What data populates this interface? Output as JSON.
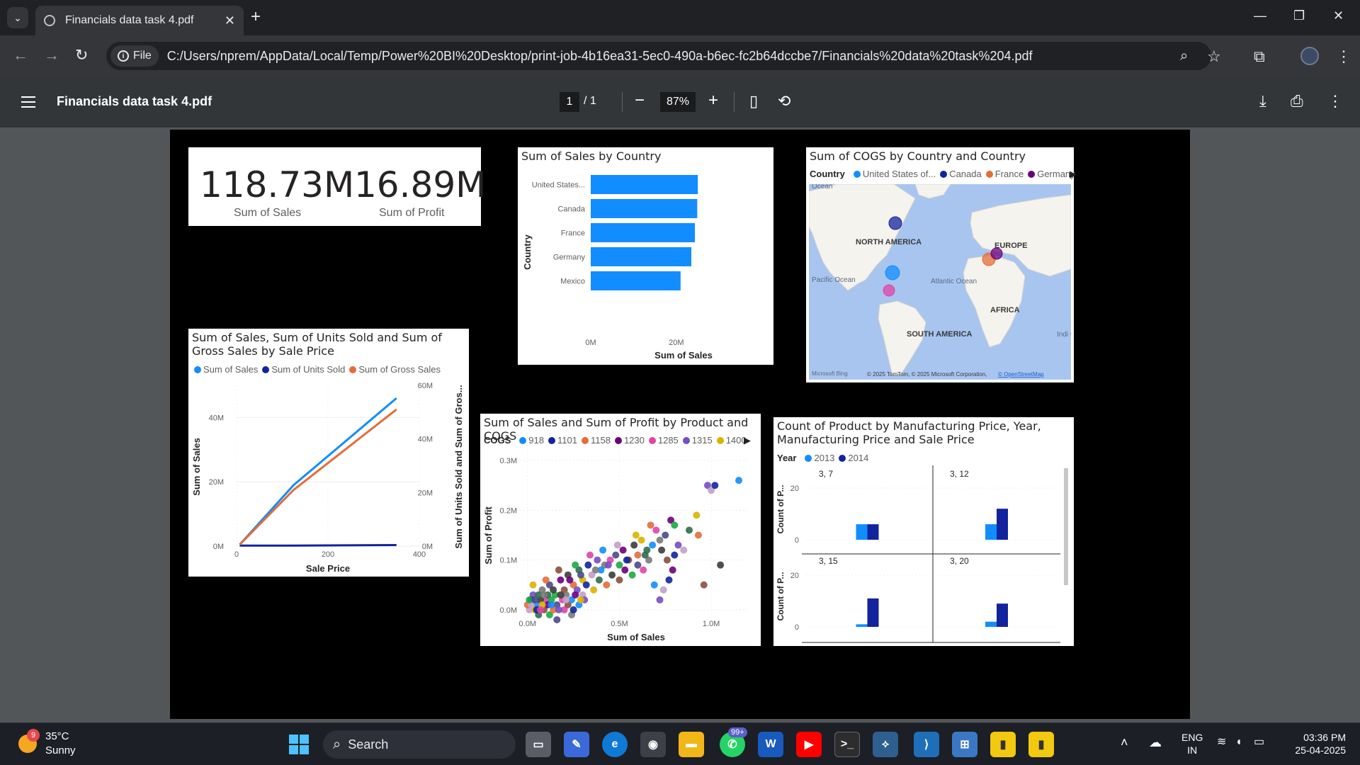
{
  "browser": {
    "tab_title": "Financials data task 4.pdf",
    "url_chip": "File",
    "url": "C:/Users/nprem/AppData/Local/Temp/Power%20BI%20Desktop/print-job-4b16ea31-5ec0-490a-b6ec-fc2b64dccbe7/Financials%20data%20task%204.pdf"
  },
  "pdf_toolbar": {
    "title": "Financials data task 4.pdf",
    "page_current": "1",
    "page_total": "/  1",
    "zoom": "87%"
  },
  "kpis": [
    {
      "value": "118.73M",
      "label": "Sum of  Sales"
    },
    {
      "value": "16.89M",
      "label": "Sum of Profit"
    }
  ],
  "chart_data": [
    {
      "id": "sales_by_country",
      "type": "bar",
      "title": "Sum of Sales by Country",
      "xlabel": "Sum of Sales",
      "ylabel": "Country",
      "categories": [
        "United States...",
        "Canada",
        "France",
        "Germany",
        "Mexico"
      ],
      "values": [
        25.03,
        24.89,
        24.35,
        23.51,
        21.0
      ],
      "xlim": [
        0,
        25.5
      ],
      "xticks": [
        "0M",
        "20M"
      ],
      "xtick_values": [
        0,
        20
      ],
      "color": "#118dff"
    },
    {
      "id": "cogs_map",
      "type": "map",
      "title": "Sum of COGS by Country and Country",
      "legend_title": "Country",
      "legend": [
        {
          "name": "United States of...",
          "color": "#118dff"
        },
        {
          "name": "Canada",
          "color": "#12239e"
        },
        {
          "name": "France",
          "color": "#e66c37"
        },
        {
          "name": "Germany",
          "color": "#6b007b"
        }
      ],
      "labels": [
        "NORTH AMERICA",
        "EUROPE",
        "SOUTH AMERICA",
        "AFRICA",
        "Pacific Ocean",
        "Atlantic Ocean",
        "Indi Oce",
        "Ocean"
      ],
      "attribution": "© 2025 TomTom, © 2025 Microsoft Corporation,",
      "attribution_link": "© OpenStreetMap",
      "bing": "Microsoft Bing"
    },
    {
      "id": "sales_units_gross",
      "type": "line",
      "title": "Sum of Sales, Sum of Units Sold and Sum of Gross Sales by Sale Price",
      "xlabel": "Sale Price",
      "ylabel": "Sum of Sales",
      "y2label": "Sum of Units Sold and Sum of Gros...",
      "x": [
        7,
        125,
        350
      ],
      "xticks": [
        0,
        200,
        400
      ],
      "ylim": [
        0,
        50
      ],
      "y2lim": [
        0,
        60
      ],
      "yticks": [
        "0M",
        "20M",
        "40M"
      ],
      "y2ticks": [
        "0M",
        "20M",
        "40M",
        "60M"
      ],
      "series": [
        {
          "name": "Sum of  Sales",
          "axis": "left",
          "values": [
            0.5,
            19,
            46
          ],
          "color": "#118dff"
        },
        {
          "name": "Sum of Units Sold",
          "axis": "right",
          "values": [
            0.2,
            0.2,
            0.4
          ],
          "color": "#12239e"
        },
        {
          "name": "Sum of Gross Sales",
          "axis": "right",
          "values": [
            0.6,
            21,
            51
          ],
          "color": "#e66c37"
        }
      ]
    },
    {
      "id": "sales_profit_scatter",
      "type": "scatter",
      "title": "Sum of Sales and Sum of Profit by Product and COGS",
      "legend_title": "COGS",
      "legend": [
        {
          "name": "918",
          "color": "#118dff"
        },
        {
          "name": "1101",
          "color": "#12239e"
        },
        {
          "name": "1158",
          "color": "#e66c37"
        },
        {
          "name": "1230",
          "color": "#6b007b"
        },
        {
          "name": "1285",
          "color": "#e044a7"
        },
        {
          "name": "1315",
          "color": "#744ec2"
        },
        {
          "name": "1400",
          "color": "#d9b300"
        }
      ],
      "xlabel": "Sum of Sales",
      "ylabel": "Sum of Profit",
      "xlim": [
        -0.08,
        1.2
      ],
      "ylim": [
        -0.03,
        0.32
      ],
      "xticks": [
        "0.0M",
        "0.5M",
        "1.0M"
      ],
      "xtick_values": [
        0,
        0.5,
        1.0
      ],
      "yticks": [
        "0.0M",
        "0.1M",
        "0.2M",
        "0.3M"
      ],
      "ytick_values": [
        0,
        0.1,
        0.2,
        0.3
      ],
      "points": [
        [
          1.15,
          0.26
        ],
        [
          0.98,
          0.25
        ],
        [
          1.0,
          0.24
        ],
        [
          1.02,
          0.25
        ],
        [
          0.92,
          0.19
        ],
        [
          0.88,
          0.16
        ],
        [
          0.93,
          0.15
        ],
        [
          1.05,
          0.09
        ],
        [
          0.96,
          0.05
        ],
        [
          0.78,
          0.18
        ],
        [
          0.8,
          0.17
        ],
        [
          0.75,
          0.15
        ],
        [
          0.7,
          0.16
        ],
        [
          0.72,
          0.14
        ],
        [
          0.68,
          0.13
        ],
        [
          0.82,
          0.13
        ],
        [
          0.85,
          0.12
        ],
        [
          0.8,
          0.11
        ],
        [
          0.62,
          0.14
        ],
        [
          0.65,
          0.12
        ],
        [
          0.6,
          0.11
        ],
        [
          0.58,
          0.13
        ],
        [
          0.55,
          0.1
        ],
        [
          0.52,
          0.12
        ],
        [
          0.5,
          0.09
        ],
        [
          0.48,
          0.11
        ],
        [
          0.45,
          0.1
        ],
        [
          0.42,
          0.09
        ],
        [
          0.4,
          0.08
        ],
        [
          0.38,
          0.1
        ],
        [
          0.35,
          0.07
        ],
        [
          0.33,
          0.09
        ],
        [
          0.3,
          0.06
        ],
        [
          0.28,
          0.08
        ],
        [
          0.25,
          0.05
        ],
        [
          0.22,
          0.07
        ],
        [
          0.2,
          0.04
        ],
        [
          0.18,
          0.06
        ],
        [
          0.15,
          0.03
        ],
        [
          0.12,
          0.05
        ],
        [
          0.1,
          0.02
        ],
        [
          0.08,
          0.04
        ],
        [
          0.05,
          0.01
        ],
        [
          0.03,
          0.03
        ],
        [
          0.01,
          0.0
        ],
        [
          0.02,
          0.02
        ],
        [
          0.04,
          0.0
        ],
        [
          0.06,
          -0.01
        ],
        [
          0.0,
          0.01
        ],
        [
          0.07,
          0.02
        ],
        [
          0.09,
          0.0
        ],
        [
          0.11,
          0.01
        ],
        [
          0.13,
          0.02
        ],
        [
          0.16,
          0.01
        ],
        [
          0.19,
          0.02
        ],
        [
          0.21,
          0.03
        ],
        [
          0.24,
          0.02
        ],
        [
          0.27,
          0.04
        ],
        [
          0.3,
          0.03
        ],
        [
          0.32,
          0.05
        ],
        [
          0.36,
          0.04
        ],
        [
          0.39,
          0.06
        ],
        [
          0.43,
          0.05
        ],
        [
          0.46,
          0.07
        ],
        [
          0.5,
          0.06
        ],
        [
          0.53,
          0.08
        ],
        [
          0.57,
          0.07
        ],
        [
          0.6,
          0.09
        ],
        [
          0.63,
          0.08
        ],
        [
          0.66,
          0.1
        ],
        [
          0.69,
          0.05
        ],
        [
          0.72,
          0.02
        ],
        [
          0.74,
          0.04
        ],
        [
          0.77,
          0.06
        ],
        [
          0.03,
          0.05
        ],
        [
          0.06,
          0.03
        ],
        [
          0.1,
          0.06
        ],
        [
          0.14,
          0.04
        ],
        [
          0.17,
          0.08
        ],
        [
          0.23,
          0.06
        ],
        [
          0.26,
          0.09
        ],
        [
          0.29,
          0.07
        ],
        [
          0.34,
          0.11
        ],
        [
          0.37,
          0.08
        ],
        [
          0.41,
          0.12
        ],
        [
          0.44,
          0.09
        ],
        [
          0.49,
          0.13
        ],
        [
          0.54,
          0.1
        ],
        [
          0.59,
          0.15
        ],
        [
          0.64,
          0.11
        ],
        [
          0.67,
          0.17
        ],
        [
          0.73,
          0.12
        ],
        [
          0.76,
          0.1
        ],
        [
          0.79,
          0.08
        ],
        [
          0.12,
          -0.01
        ],
        [
          0.16,
          -0.02
        ],
        [
          0.2,
          0.0
        ],
        [
          0.24,
          -0.01
        ],
        [
          0.28,
          0.01
        ],
        [
          0.31,
          0.02
        ],
        [
          0.02,
          0.01
        ],
        [
          0.05,
          0.0
        ],
        [
          0.08,
          0.01
        ],
        [
          0.11,
          0.03
        ],
        [
          0.14,
          0.0
        ],
        [
          0.18,
          0.03
        ],
        [
          0.22,
          0.01
        ],
        [
          0.26,
          0.03
        ],
        [
          0.01,
          0.02
        ],
        [
          0.04,
          0.02
        ],
        [
          0.07,
          0.0
        ],
        [
          0.09,
          0.03
        ],
        [
          0.13,
          0.01
        ],
        [
          0.17,
          0.0
        ],
        [
          0.21,
          0.02
        ],
        [
          0.25,
          0.0
        ],
        [
          0.29,
          0.02
        ]
      ]
    },
    {
      "id": "count_product_small_multiples",
      "type": "bar",
      "title": "Count of Product by Manufacturing Price, Year, Manufacturing Price and Sale Price",
      "legend_title": "Year",
      "legend": [
        {
          "name": "2013",
          "color": "#118dff"
        },
        {
          "name": "2014",
          "color": "#12239e"
        }
      ],
      "ylabel": "Count of P...",
      "ylim": [
        0,
        30
      ],
      "yticks": [
        0,
        20
      ],
      "panels": [
        {
          "label": "3, 7",
          "values": [
            6,
            6
          ]
        },
        {
          "label": "3, 12",
          "values": [
            6,
            12
          ]
        },
        {
          "label": "3, 15",
          "values": [
            1,
            11
          ]
        },
        {
          "label": "3, 20",
          "values": [
            2,
            9
          ]
        }
      ]
    }
  ],
  "taskbar": {
    "weather_temp": "35°C",
    "weather_text": "Sunny",
    "weather_badge": "9",
    "search": "Search",
    "whatsapp_badge": "99+",
    "lang1": "ENG",
    "lang2": "IN",
    "time": "03:36 PM",
    "date": "25-04-2025"
  }
}
